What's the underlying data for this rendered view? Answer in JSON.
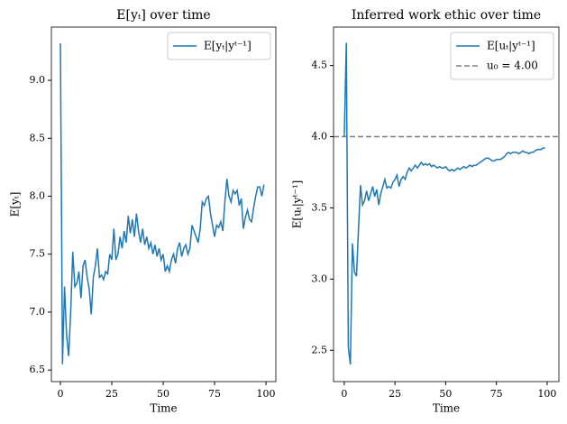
{
  "chart_data": [
    {
      "type": "line",
      "title": "E[yₜ] over time",
      "x_label": "Time",
      "y_label": "E[yₜ]",
      "x": [
        0,
        1,
        2,
        3,
        4,
        5,
        6,
        7,
        8,
        9,
        10,
        11,
        12,
        13,
        14,
        15,
        16,
        17,
        18,
        19,
        20,
        21,
        22,
        23,
        24,
        25,
        26,
        27,
        28,
        29,
        30,
        31,
        32,
        33,
        34,
        35,
        36,
        37,
        38,
        39,
        40,
        41,
        42,
        43,
        44,
        45,
        46,
        47,
        48,
        49,
        50,
        51,
        52,
        53,
        54,
        55,
        56,
        57,
        58,
        59,
        60,
        61,
        62,
        63,
        64,
        65,
        66,
        67,
        68,
        69,
        70,
        71,
        72,
        73,
        74,
        75,
        76,
        77,
        78,
        79,
        80,
        81,
        82,
        83,
        84,
        85,
        86,
        87,
        88,
        89,
        90,
        91,
        92,
        93,
        94,
        95,
        96,
        97,
        98,
        99
      ],
      "series": [
        {
          "name": "E[yₜ|yᵗ⁻¹]",
          "color": "#1f77b4",
          "values": [
            9.32,
            6.55,
            7.22,
            6.8,
            6.62,
            7.0,
            7.52,
            7.22,
            7.25,
            7.35,
            7.12,
            7.4,
            7.45,
            7.3,
            7.2,
            6.98,
            7.3,
            7.4,
            7.55,
            7.3,
            7.32,
            7.28,
            7.35,
            7.33,
            7.5,
            7.45,
            7.72,
            7.45,
            7.5,
            7.65,
            7.55,
            7.7,
            7.6,
            7.83,
            7.68,
            7.8,
            7.65,
            7.85,
            7.7,
            7.6,
            7.72,
            7.58,
            7.65,
            7.55,
            7.6,
            7.5,
            7.58,
            7.48,
            7.55,
            7.45,
            7.5,
            7.35,
            7.4,
            7.35,
            7.45,
            7.5,
            7.42,
            7.55,
            7.6,
            7.48,
            7.55,
            7.58,
            7.5,
            7.55,
            7.75,
            7.7,
            7.65,
            7.6,
            7.72,
            7.95,
            7.92,
            7.98,
            8.0,
            7.85,
            7.75,
            7.65,
            7.75,
            7.73,
            7.78,
            7.7,
            7.95,
            8.15,
            8.0,
            7.95,
            8.05,
            8.02,
            8.05,
            7.92,
            7.98,
            7.72,
            7.82,
            7.88,
            7.8,
            7.78,
            7.9,
            8.0,
            8.08,
            8.08,
            8.0,
            8.1
          ]
        }
      ],
      "xlim": [
        -4.4,
        104.8
      ],
      "ylim": [
        6.4,
        9.46
      ],
      "xticks": [
        0,
        25,
        50,
        75,
        100
      ],
      "yticks": [
        6.5,
        {
          "value": 7.0,
          "label": "7.0"
        },
        7.5,
        {
          "value": 8.0,
          "label": "8.0"
        },
        8.5,
        {
          "value": 9.0,
          "label": "9.0"
        }
      ],
      "legend": "upper right"
    },
    {
      "type": "line",
      "title": "Inferred work ethic over time",
      "x_label": "Time",
      "y_label": "E[uₜ|yᵗ⁻¹]",
      "x": [
        0,
        1,
        2,
        3,
        4,
        5,
        6,
        7,
        8,
        9,
        10,
        11,
        12,
        13,
        14,
        15,
        16,
        17,
        18,
        19,
        20,
        21,
        22,
        23,
        24,
        25,
        26,
        27,
        28,
        29,
        30,
        31,
        32,
        33,
        34,
        35,
        36,
        37,
        38,
        39,
        40,
        41,
        42,
        43,
        44,
        45,
        46,
        47,
        48,
        49,
        50,
        51,
        52,
        53,
        54,
        55,
        56,
        57,
        58,
        59,
        60,
        61,
        62,
        63,
        64,
        65,
        66,
        67,
        68,
        69,
        70,
        71,
        72,
        73,
        74,
        75,
        76,
        77,
        78,
        79,
        80,
        81,
        82,
        83,
        84,
        85,
        86,
        87,
        88,
        89,
        90,
        91,
        92,
        93,
        94,
        95,
        96,
        97,
        98,
        99
      ],
      "series": [
        {
          "name": "E[uₜ|yᵗ⁻¹]",
          "color": "#1f77b4",
          "values": [
            4.0,
            4.66,
            2.52,
            2.4,
            3.25,
            3.05,
            3.02,
            3.35,
            3.66,
            3.52,
            3.55,
            3.62,
            3.55,
            3.6,
            3.65,
            3.58,
            3.63,
            3.52,
            3.6,
            3.65,
            3.7,
            3.64,
            3.65,
            3.64,
            3.68,
            3.7,
            3.73,
            3.65,
            3.7,
            3.72,
            3.7,
            3.75,
            3.78,
            3.76,
            3.78,
            3.8,
            3.78,
            3.8,
            3.82,
            3.8,
            3.81,
            3.8,
            3.81,
            3.79,
            3.8,
            3.79,
            3.78,
            3.79,
            3.78,
            3.78,
            3.79,
            3.77,
            3.76,
            3.77,
            3.76,
            3.77,
            3.78,
            3.77,
            3.78,
            3.79,
            3.78,
            3.79,
            3.8,
            3.79,
            3.8,
            3.8,
            3.81,
            3.82,
            3.83,
            3.84,
            3.85,
            3.85,
            3.84,
            3.83,
            3.83,
            3.84,
            3.84,
            3.84,
            3.85,
            3.86,
            3.88,
            3.89,
            3.88,
            3.89,
            3.89,
            3.89,
            3.88,
            3.89,
            3.9,
            3.89,
            3.89,
            3.88,
            3.89,
            3.89,
            3.9,
            3.91,
            3.91,
            3.91,
            3.92,
            3.92
          ]
        }
      ],
      "hlines": [
        {
          "value": 4.0,
          "name": "u₀ = 4.00",
          "color": "#7f7f7f",
          "style": "dashed"
        }
      ],
      "xlim": [
        -5.3,
        105.8
      ],
      "ylim": [
        2.28,
        4.77
      ],
      "xticks": [
        0,
        25,
        50,
        75,
        100
      ],
      "yticks": [
        2.5,
        {
          "value": 3.0,
          "label": "3.0"
        },
        3.5,
        {
          "value": 4.0,
          "label": "4.0"
        },
        4.5
      ],
      "legend": "upper right"
    }
  ]
}
